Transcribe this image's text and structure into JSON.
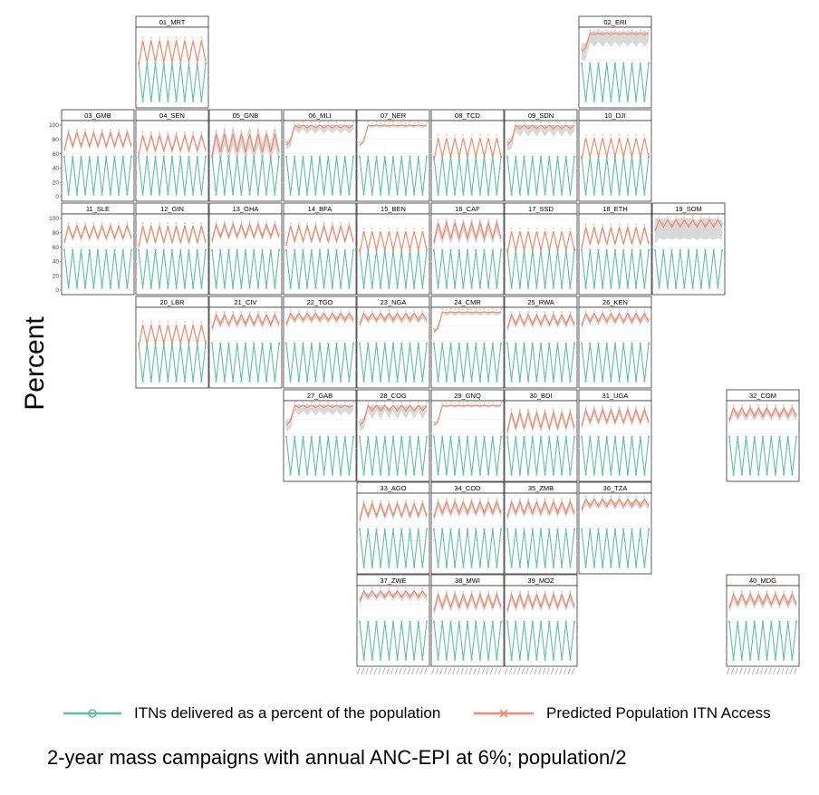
{
  "chart_data": {
    "type": "line",
    "title": "2-year mass campaigns with annual ANC-EPI at 6%; population/2",
    "ylabel": "Percent",
    "xlabel": "",
    "ylim": [
      0,
      100
    ],
    "yticks": [
      "0",
      "20",
      "40",
      "60",
      "80",
      "100"
    ],
    "legend_position": "bottom",
    "grid": true,
    "series": [
      {
        "name": "ITNs delivered as a percent of the population",
        "color": "#5cc0a2",
        "marker": "circle"
      },
      {
        "name": "Predicted Population ITN Access",
        "color": "#f2896a",
        "marker": "x"
      }
    ],
    "cycle": {
      "delivered_high": 56,
      "delivered_low": 3,
      "period_years": 2,
      "access_note": "access peaks in campaign years and declines between campaigns"
    },
    "panels": [
      {
        "label": "01_MRT",
        "access_low": 58,
        "access_high": 88,
        "band": 3,
        "kind": "osc"
      },
      {
        "label": "02_ERI",
        "access_low": 96,
        "access_high": 98,
        "band": 12,
        "kind": "plateau"
      },
      {
        "label": "03_GMB",
        "access_low": 70,
        "access_high": 90,
        "band": 4,
        "kind": "osc"
      },
      {
        "label": "04_SEN",
        "access_low": 64,
        "access_high": 86,
        "band": 4,
        "kind": "osc"
      },
      {
        "label": "05_GNB",
        "access_low": 62,
        "access_high": 88,
        "band": 12,
        "kind": "osc"
      },
      {
        "label": "06_MLI",
        "access_low": 96,
        "access_high": 100,
        "band": 6,
        "kind": "plateau"
      },
      {
        "label": "07_NER",
        "access_low": 99,
        "access_high": 100,
        "band": 2,
        "kind": "plateau"
      },
      {
        "label": "08_TCD",
        "access_low": 56,
        "access_high": 82,
        "band": 2,
        "kind": "osc"
      },
      {
        "label": "09_SDN",
        "access_low": 95,
        "access_high": 100,
        "band": 8,
        "kind": "plateau"
      },
      {
        "label": "10_DJI",
        "access_low": 56,
        "access_high": 82,
        "band": 2,
        "kind": "osc"
      },
      {
        "label": "11_SLE",
        "access_low": 72,
        "access_high": 90,
        "band": 4,
        "kind": "osc"
      },
      {
        "label": "12_GIN",
        "access_low": 66,
        "access_high": 90,
        "band": 4,
        "kind": "osc"
      },
      {
        "label": "13_GHA",
        "access_low": 74,
        "access_high": 92,
        "band": 5,
        "kind": "osc"
      },
      {
        "label": "14_BFA",
        "access_low": 68,
        "access_high": 90,
        "band": 4,
        "kind": "osc"
      },
      {
        "label": "15_BEN",
        "access_low": 56,
        "access_high": 82,
        "band": 2,
        "kind": "osc"
      },
      {
        "label": "16_CAF",
        "access_low": 72,
        "access_high": 94,
        "band": 8,
        "kind": "osc"
      },
      {
        "label": "17_SSD",
        "access_low": 56,
        "access_high": 82,
        "band": 2,
        "kind": "osc"
      },
      {
        "label": "18_ETH",
        "access_low": 64,
        "access_high": 88,
        "band": 4,
        "kind": "osc"
      },
      {
        "label": "19_SOM",
        "access_low": 88,
        "access_high": 98,
        "band": 18,
        "kind": "osc"
      },
      {
        "label": "20_LBR",
        "access_low": 56,
        "access_high": 82,
        "band": 3,
        "kind": "osc"
      },
      {
        "label": "21_CIV",
        "access_low": 82,
        "access_high": 96,
        "band": 5,
        "kind": "osc"
      },
      {
        "label": "22_TGO",
        "access_low": 88,
        "access_high": 98,
        "band": 5,
        "kind": "osc"
      },
      {
        "label": "23_NGA",
        "access_low": 88,
        "access_high": 98,
        "band": 5,
        "kind": "osc"
      },
      {
        "label": "24_CMR",
        "access_low": 99,
        "access_high": 100,
        "band": 3,
        "kind": "plateau"
      },
      {
        "label": "25_RWA",
        "access_low": 82,
        "access_high": 96,
        "band": 5,
        "kind": "osc"
      },
      {
        "label": "26_KEN",
        "access_low": 86,
        "access_high": 98,
        "band": 5,
        "kind": "osc"
      },
      {
        "label": "27_GAB",
        "access_low": 97,
        "access_high": 100,
        "band": 8,
        "kind": "plateau"
      },
      {
        "label": "28_COG",
        "access_low": 92,
        "access_high": 100,
        "band": 8,
        "kind": "plateau"
      },
      {
        "label": "29_GNQ",
        "access_low": 99,
        "access_high": 100,
        "band": 2,
        "kind": "plateau"
      },
      {
        "label": "30_BDI",
        "access_low": 68,
        "access_high": 90,
        "band": 6,
        "kind": "osc"
      },
      {
        "label": "31_UGA",
        "access_low": 76,
        "access_high": 94,
        "band": 5,
        "kind": "osc"
      },
      {
        "label": "32_COM",
        "access_low": 84,
        "access_high": 96,
        "band": 6,
        "kind": "osc"
      },
      {
        "label": "33_AGO",
        "access_low": 74,
        "access_high": 92,
        "band": 5,
        "kind": "osc"
      },
      {
        "label": "34_COD",
        "access_low": 78,
        "access_high": 94,
        "band": 6,
        "kind": "osc"
      },
      {
        "label": "35_ZMB",
        "access_low": 78,
        "access_high": 94,
        "band": 6,
        "kind": "osc"
      },
      {
        "label": "36_TZA",
        "access_low": 88,
        "access_high": 98,
        "band": 5,
        "kind": "osc"
      },
      {
        "label": "37_ZWE",
        "access_low": 90,
        "access_high": 99,
        "band": 5,
        "kind": "osc"
      },
      {
        "label": "38_MWI",
        "access_low": 76,
        "access_high": 94,
        "band": 6,
        "kind": "osc"
      },
      {
        "label": "39_MOZ",
        "access_low": 76,
        "access_high": 94,
        "band": 6,
        "kind": "osc"
      },
      {
        "label": "40_MDG",
        "access_low": 80,
        "access_high": 94,
        "band": 6,
        "kind": "osc"
      }
    ]
  },
  "legend": {
    "delivered_label": "ITNs delivered as a percent of the population",
    "access_label": "Predicted Population ITN Access"
  },
  "caption": "2-year mass campaigns with annual ANC-EPI at 6%; population/2",
  "axis": {
    "ylabel": "Percent"
  }
}
